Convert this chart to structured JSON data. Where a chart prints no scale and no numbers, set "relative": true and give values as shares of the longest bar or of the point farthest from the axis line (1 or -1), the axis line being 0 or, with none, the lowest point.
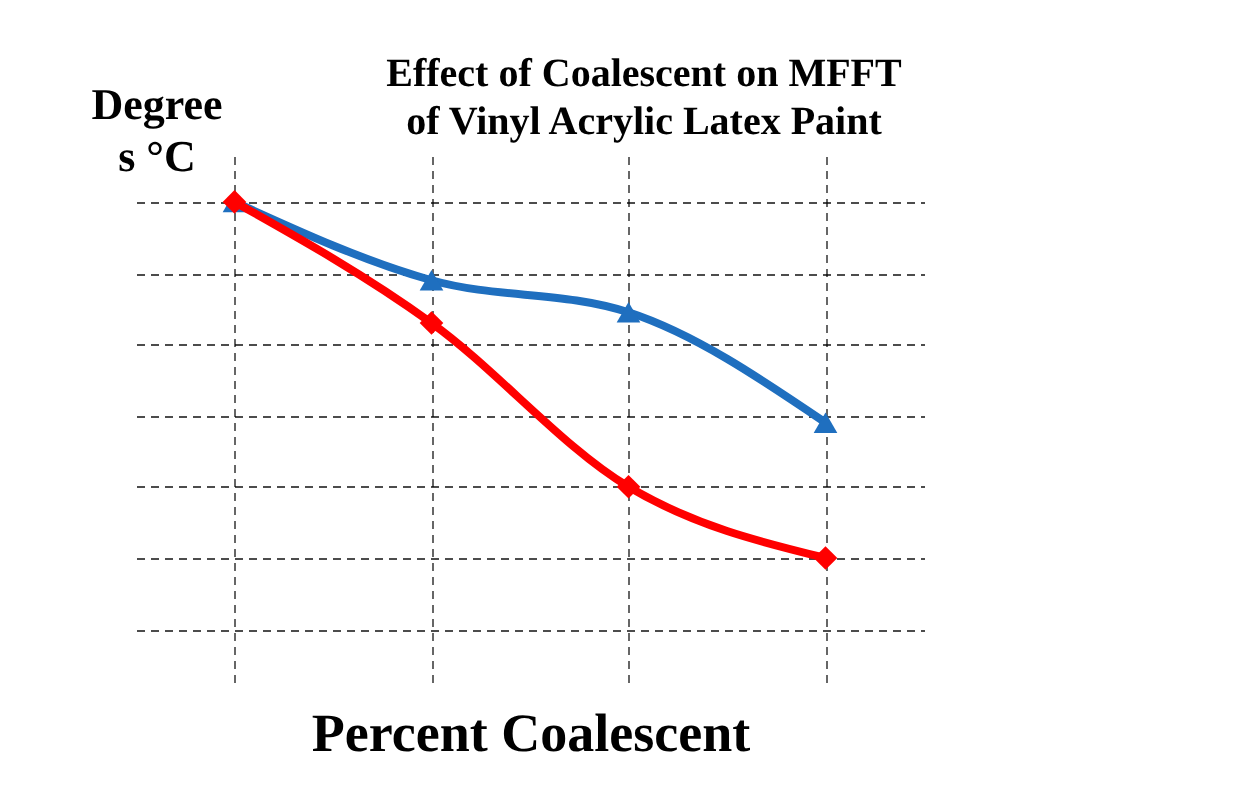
{
  "chart_data": {
    "type": "line",
    "title": "Effect of Coalescent on MFFT\nof Vinyl Acrylic Latex Paint",
    "xlabel": "Percent Coalescent",
    "ylabel": "Degree\ns °C",
    "relative": true,
    "categories": [
      null,
      null,
      null,
      null
    ],
    "grid": true,
    "series": [
      {
        "color": "#1f6fbf",
        "marker": "triangle",
        "values": [
          1,
          0.78,
          0.69,
          0.38
        ]
      },
      {
        "color": "#ff0000",
        "marker": "diamond",
        "values": [
          1,
          0.66,
          0.2,
          0
        ]
      }
    ]
  }
}
